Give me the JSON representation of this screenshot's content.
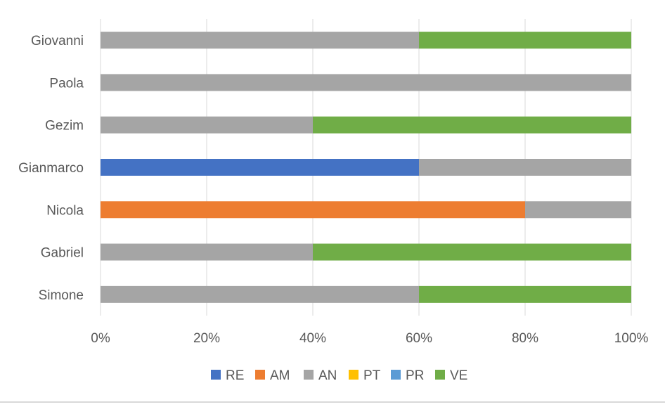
{
  "chart_data": {
    "type": "bar",
    "orientation": "horizontal",
    "stacked": "percent",
    "title": "",
    "xlabel": "",
    "ylabel": "",
    "xlim": [
      0,
      100
    ],
    "x_ticks": [
      "0%",
      "20%",
      "40%",
      "60%",
      "80%",
      "100%"
    ],
    "grid": "vertical",
    "legend_position": "bottom",
    "categories": [
      "Giovanni",
      "Paola",
      "Gezim",
      "Gianmarco",
      "Nicola",
      "Gabriel",
      "Simone"
    ],
    "series": [
      {
        "name": "RE",
        "color": "#4472C4",
        "values": [
          0,
          0,
          0,
          60,
          0,
          0,
          0
        ]
      },
      {
        "name": "AM",
        "color": "#ED7D31",
        "values": [
          0,
          0,
          0,
          0,
          80,
          0,
          0
        ]
      },
      {
        "name": "AN",
        "color": "#A5A5A5",
        "values": [
          60,
          100,
          40,
          40,
          20,
          40,
          60
        ]
      },
      {
        "name": "PT",
        "color": "#FFC000",
        "values": [
          0,
          0,
          0,
          0,
          0,
          0,
          0
        ]
      },
      {
        "name": "PR",
        "color": "#5B9BD5",
        "values": [
          0,
          0,
          0,
          0,
          0,
          0,
          0
        ]
      },
      {
        "name": "VE",
        "color": "#70AD47",
        "values": [
          40,
          0,
          60,
          0,
          0,
          60,
          40
        ]
      }
    ]
  }
}
